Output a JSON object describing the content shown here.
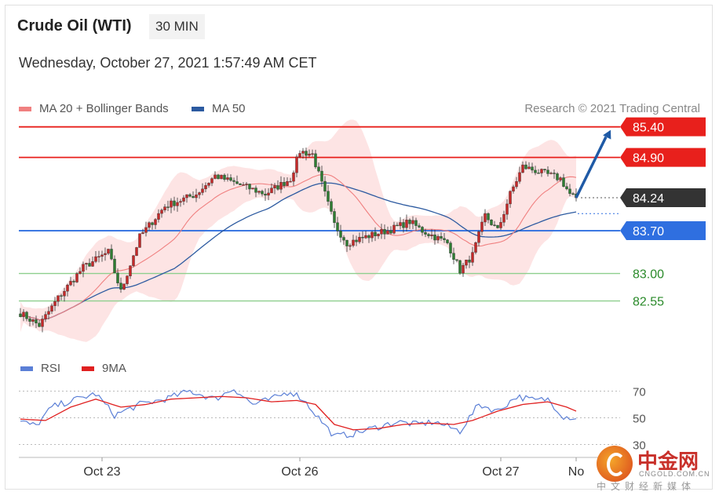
{
  "header": {
    "title": "Crude Oil (WTI)",
    "interval": "30 MIN",
    "datetime": "Wednesday, October 27, 2021 1:57:49 AM CET"
  },
  "legend": {
    "ma20_label": "MA 20 + Bollinger Bands",
    "ma20_color": "#f08080",
    "ma50_label": "MA 50",
    "ma50_color": "#2c5aa0",
    "rsi_label": "RSI",
    "rsi_color": "#5b7fd6",
    "ma9_label": "9MA",
    "ma9_color": "#e02020"
  },
  "credit": "Research © 2021 Trading Central",
  "watermark": {
    "cn": "中金网",
    "en": "CNGOLD.COM.CN",
    "sub": "中文财经新媒体"
  },
  "chart_data": {
    "type": "candlestick",
    "price_ylim": [
      81.8,
      85.55
    ],
    "x_ticks": [
      {
        "label": "Oct 23",
        "bar": 26
      },
      {
        "label": "Oct 26",
        "bar": 89
      },
      {
        "label": "Oct 27",
        "bar": 153
      },
      {
        "label": "No",
        "bar": 177
      }
    ],
    "levels": [
      {
        "value": 85.4,
        "label": "85.40",
        "style": "resistance",
        "color": "#e8201c"
      },
      {
        "value": 84.9,
        "label": "84.90",
        "style": "resistance",
        "color": "#e8201c"
      },
      {
        "value": 84.24,
        "label": "84.24",
        "style": "current",
        "color": "#333333"
      },
      {
        "value": 83.7,
        "label": "83.70",
        "style": "support",
        "color": "#2f6fe0"
      },
      {
        "value": 83.0,
        "label": "83.00",
        "style": "minor",
        "color": "#2a8a2a"
      },
      {
        "value": 82.55,
        "label": "82.55",
        "style": "minor",
        "color": "#2a8a2a"
      }
    ],
    "forecast_arrow": {
      "from_bar": 177,
      "from_value": 84.24,
      "to_bar": 188,
      "to_value": 85.35
    },
    "key_points": [
      {
        "bar": 0,
        "value": 82.35
      },
      {
        "bar": 6,
        "value": 82.15
      },
      {
        "bar": 12,
        "value": 82.6
      },
      {
        "bar": 20,
        "value": 83.1
      },
      {
        "bar": 28,
        "value": 83.35
      },
      {
        "bar": 32,
        "value": 82.7
      },
      {
        "bar": 38,
        "value": 83.6
      },
      {
        "bar": 46,
        "value": 84.1
      },
      {
        "bar": 56,
        "value": 84.3
      },
      {
        "bar": 62,
        "value": 84.6
      },
      {
        "bar": 70,
        "value": 84.45
      },
      {
        "bar": 78,
        "value": 84.3
      },
      {
        "bar": 86,
        "value": 84.55
      },
      {
        "bar": 89,
        "value": 85.0
      },
      {
        "bar": 93,
        "value": 84.95
      },
      {
        "bar": 97,
        "value": 84.3
      },
      {
        "bar": 100,
        "value": 83.8
      },
      {
        "bar": 104,
        "value": 83.5
      },
      {
        "bar": 110,
        "value": 83.6
      },
      {
        "bar": 118,
        "value": 83.72
      },
      {
        "bar": 124,
        "value": 83.85
      },
      {
        "bar": 128,
        "value": 83.7
      },
      {
        "bar": 136,
        "value": 83.5
      },
      {
        "bar": 140,
        "value": 83.05
      },
      {
        "bar": 144,
        "value": 83.3
      },
      {
        "bar": 148,
        "value": 83.95
      },
      {
        "bar": 152,
        "value": 83.7
      },
      {
        "bar": 156,
        "value": 84.3
      },
      {
        "bar": 160,
        "value": 84.75
      },
      {
        "bar": 166,
        "value": 84.65
      },
      {
        "bar": 172,
        "value": 84.55
      },
      {
        "bar": 175,
        "value": 84.3
      },
      {
        "bar": 177,
        "value": 84.24
      }
    ],
    "rsi_ylim": [
      25,
      75
    ],
    "rsi_levels": [
      70,
      50,
      30
    ],
    "rsi_key_points": [
      {
        "bar": 0,
        "value": 47
      },
      {
        "bar": 5,
        "value": 44
      },
      {
        "bar": 10,
        "value": 58
      },
      {
        "bar": 18,
        "value": 64
      },
      {
        "bar": 24,
        "value": 68
      },
      {
        "bar": 30,
        "value": 52
      },
      {
        "bar": 38,
        "value": 60
      },
      {
        "bar": 46,
        "value": 64
      },
      {
        "bar": 54,
        "value": 70
      },
      {
        "bar": 62,
        "value": 64
      },
      {
        "bar": 68,
        "value": 72
      },
      {
        "bar": 74,
        "value": 60
      },
      {
        "bar": 80,
        "value": 64
      },
      {
        "bar": 86,
        "value": 70
      },
      {
        "bar": 90,
        "value": 64
      },
      {
        "bar": 95,
        "value": 50
      },
      {
        "bar": 100,
        "value": 36
      },
      {
        "bar": 106,
        "value": 38
      },
      {
        "bar": 112,
        "value": 42
      },
      {
        "bar": 120,
        "value": 47
      },
      {
        "bar": 126,
        "value": 45
      },
      {
        "bar": 132,
        "value": 47
      },
      {
        "bar": 140,
        "value": 40
      },
      {
        "bar": 146,
        "value": 60
      },
      {
        "bar": 152,
        "value": 55
      },
      {
        "bar": 158,
        "value": 66
      },
      {
        "bar": 164,
        "value": 63
      },
      {
        "bar": 168,
        "value": 64
      },
      {
        "bar": 173,
        "value": 51
      },
      {
        "bar": 177,
        "value": 50
      }
    ],
    "rsi_ma_key_points": [
      {
        "bar": 0,
        "value": 49
      },
      {
        "bar": 8,
        "value": 48
      },
      {
        "bar": 16,
        "value": 58
      },
      {
        "bar": 24,
        "value": 64
      },
      {
        "bar": 32,
        "value": 58
      },
      {
        "bar": 40,
        "value": 60
      },
      {
        "bar": 48,
        "value": 64
      },
      {
        "bar": 56,
        "value": 65
      },
      {
        "bar": 64,
        "value": 66
      },
      {
        "bar": 72,
        "value": 65
      },
      {
        "bar": 80,
        "value": 62
      },
      {
        "bar": 88,
        "value": 63
      },
      {
        "bar": 94,
        "value": 60
      },
      {
        "bar": 100,
        "value": 45
      },
      {
        "bar": 106,
        "value": 41
      },
      {
        "bar": 114,
        "value": 42
      },
      {
        "bar": 122,
        "value": 45
      },
      {
        "bar": 130,
        "value": 46
      },
      {
        "bar": 138,
        "value": 45
      },
      {
        "bar": 144,
        "value": 48
      },
      {
        "bar": 152,
        "value": 55
      },
      {
        "bar": 160,
        "value": 60
      },
      {
        "bar": 168,
        "value": 62
      },
      {
        "bar": 174,
        "value": 58
      },
      {
        "bar": 177,
        "value": 55
      }
    ]
  }
}
